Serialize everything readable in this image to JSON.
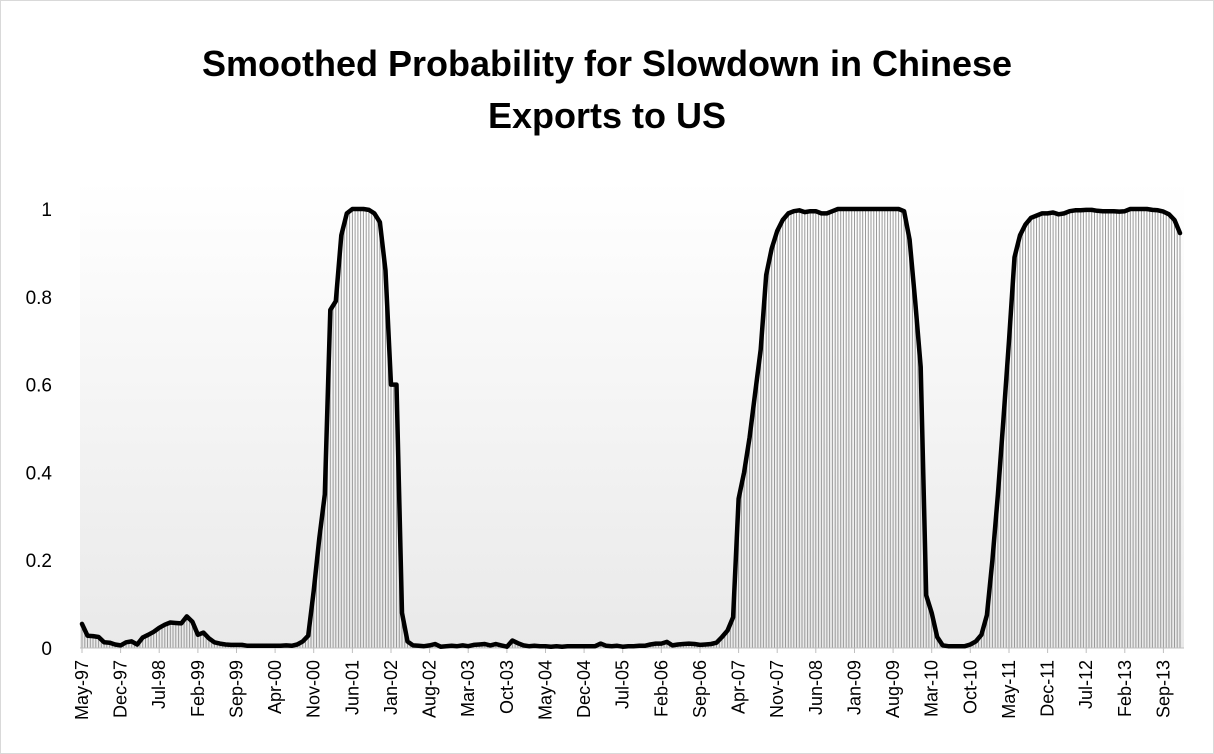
{
  "chart_data": {
    "type": "area",
    "title_lines": [
      "Smoothed Probability for Slowdown in Chinese",
      "Exports to US"
    ],
    "xlabel": "",
    "ylabel": "",
    "ylim": [
      0,
      1
    ],
    "y_ticks": [
      "0",
      "0.2",
      "0.4",
      "0.6",
      "0.8",
      "1"
    ],
    "x_tick_labels": [
      "May-97",
      "Dec-97",
      "Jul-98",
      "Feb-99",
      "Sep-99",
      "Apr-00",
      "Nov-00",
      "Jun-01",
      "Jan-02",
      "Aug-02",
      "Mar-03",
      "Oct-03",
      "May-04",
      "Dec-04",
      "Jul-05",
      "Feb-06",
      "Sep-06",
      "Apr-07",
      "Nov-07",
      "Jun-08",
      "Jan-09",
      "Aug-09",
      "Mar-10",
      "Oct-10",
      "May-11",
      "Dec-11",
      "Jul-12",
      "Feb-13",
      "Sep-13"
    ],
    "x_start": "May-97",
    "x_end": "Mar-14",
    "grid": false,
    "colors": {
      "line": "#000000",
      "fill_hatch": "#9a9a9a",
      "axis": "#bfbfbf"
    },
    "series": [
      {
        "values": [
          0.055,
          0.028,
          0.027,
          0.025,
          0.013,
          0.012,
          0.008,
          0.006,
          0.013,
          0.015,
          0.008,
          0.024,
          0.03,
          0.037,
          0.046,
          0.053,
          0.058,
          0.057,
          0.056,
          0.072,
          0.06,
          0.03,
          0.035,
          0.022,
          0.013,
          0.01,
          0.008,
          0.007,
          0.007,
          0.007,
          0.005,
          0.005,
          0.005,
          0.005,
          0.005,
          0.005,
          0.005,
          0.006,
          0.005,
          0.008,
          0.015,
          0.028,
          0.13,
          0.25,
          0.35,
          0.77,
          0.79,
          0.94,
          0.99,
          1.0,
          1.0,
          1.0,
          0.998,
          0.99,
          0.97,
          0.86,
          0.6,
          0.6,
          0.08,
          0.015,
          0.006,
          0.005,
          0.004,
          0.006,
          0.009,
          0.003,
          0.004,
          0.005,
          0.004,
          0.006,
          0.004,
          0.007,
          0.008,
          0.009,
          0.006,
          0.009,
          0.006,
          0.003,
          0.017,
          0.011,
          0.006,
          0.004,
          0.005,
          0.004,
          0.004,
          0.003,
          0.004,
          0.003,
          0.004,
          0.004,
          0.004,
          0.004,
          0.004,
          0.004,
          0.01,
          0.005,
          0.004,
          0.005,
          0.003,
          0.004,
          0.004,
          0.005,
          0.005,
          0.008,
          0.01,
          0.01,
          0.014,
          0.006,
          0.008,
          0.009,
          0.01,
          0.009,
          0.007,
          0.008,
          0.009,
          0.012,
          0.025,
          0.04,
          0.07,
          0.34,
          0.4,
          0.48,
          0.58,
          0.68,
          0.85,
          0.91,
          0.95,
          0.975,
          0.99,
          0.995,
          0.997,
          0.993,
          0.995,
          0.995,
          0.99,
          0.99,
          0.995,
          1.0,
          1.0,
          1.0,
          1.0,
          1.0,
          1.0,
          1.0,
          1.0,
          1.0,
          1.0,
          1.0,
          1.0,
          0.995,
          0.93,
          0.79,
          0.64,
          0.12,
          0.08,
          0.025,
          0.006,
          0.004,
          0.004,
          0.004,
          0.004,
          0.008,
          0.015,
          0.03,
          0.075,
          0.2,
          0.35,
          0.52,
          0.7,
          0.89,
          0.94,
          0.965,
          0.98,
          0.985,
          0.99,
          0.99,
          0.992,
          0.988,
          0.99,
          0.995,
          0.997,
          0.997,
          0.998,
          0.998,
          0.996,
          0.995,
          0.995,
          0.995,
          0.994,
          0.995,
          1.0,
          1.0,
          1.0,
          1.0,
          0.998,
          0.997,
          0.994,
          0.988,
          0.975,
          0.945
        ]
      }
    ]
  }
}
